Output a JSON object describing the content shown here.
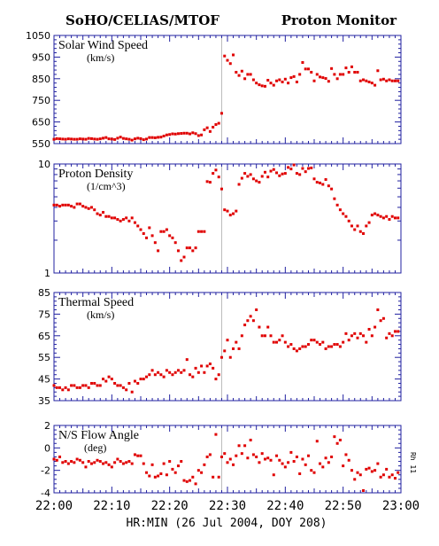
{
  "header": {
    "left": "SoHO/CELIAS/MTOF",
    "right": "Proton Monitor"
  },
  "xaxis": {
    "label": "HR:MIN (26 Jul 2004, DOY 208)",
    "ticks": [
      "22:00",
      "22:10",
      "22:20",
      "22:30",
      "22:40",
      "22:50",
      "23:00"
    ]
  },
  "side_note": "Rh 11",
  "colors": {
    "frame": "#2020a0",
    "points": "#e00000",
    "marker": "#bbbbbb"
  },
  "chart_data": [
    {
      "type": "scatter",
      "title": "Solar Wind Speed",
      "unit": "(km/s)",
      "ylim": [
        550,
        1050
      ],
      "yticks": [
        "1050",
        "950",
        "850",
        "750",
        "650",
        "550"
      ],
      "xlim": [
        0,
        60
      ],
      "x": [
        0.0,
        0.5,
        1.0,
        1.5,
        2.0,
        2.5,
        3.0,
        3.5,
        4.0,
        4.5,
        5.0,
        5.5,
        6.0,
        6.5,
        7.0,
        7.5,
        8.0,
        8.5,
        9.0,
        9.5,
        10.0,
        10.5,
        11.0,
        11.5,
        12.0,
        12.5,
        13.0,
        13.5,
        14.0,
        14.5,
        15.0,
        15.5,
        16.0,
        16.5,
        17.0,
        17.5,
        18.0,
        18.5,
        19.0,
        19.5,
        20.0,
        20.5,
        21.0,
        21.5,
        22.0,
        22.5,
        23.0,
        23.5,
        24.0,
        24.5,
        25.0,
        25.5,
        26.0,
        26.5,
        27.0,
        27.5,
        28.0,
        28.5,
        29.0,
        29.5,
        30.0,
        30.5,
        31.0,
        31.5,
        32.0,
        32.5,
        33.0,
        33.5,
        34.0,
        34.5,
        35.0,
        35.5,
        36.0,
        36.5,
        37.0,
        37.5,
        38.0,
        38.5,
        39.0,
        39.5,
        40.0,
        40.5,
        41.0,
        41.5,
        42.0,
        42.5,
        43.0,
        43.5,
        44.0,
        44.5,
        45.0,
        45.5,
        46.0,
        46.5,
        47.0,
        47.5,
        48.0,
        48.5,
        49.0,
        49.5,
        50.0,
        50.5,
        51.0,
        51.5,
        52.0,
        52.5,
        53.0,
        53.5,
        54.0,
        54.5,
        55.0,
        55.5,
        56.0,
        56.5,
        57.0,
        57.5,
        58.0,
        58.5,
        59.0,
        59.5
      ],
      "y": [
        570,
        573,
        572,
        571,
        570,
        572,
        571,
        570,
        570,
        572,
        571,
        570,
        574,
        573,
        571,
        570,
        572,
        575,
        578,
        572,
        571,
        569,
        575,
        580,
        574,
        572,
        570,
        566,
        572,
        575,
        573,
        568,
        571,
        578,
        578,
        577,
        579,
        580,
        585,
        590,
        592,
        595,
        594,
        596,
        597,
        598,
        598,
        595,
        600,
        596,
        587,
        590,
        614,
        623,
        606,
        626,
        638,
        644,
        690,
        955,
        935,
        920,
        960,
        880,
        865,
        885,
        850,
        870,
        870,
        845,
        830,
        822,
        817,
        815,
        843,
        830,
        820,
        840,
        845,
        835,
        848,
        830,
        855,
        860,
        835,
        870,
        925,
        895,
        895,
        880,
        840,
        870,
        858,
        855,
        851,
        838,
        897,
        870,
        850,
        870,
        870,
        900,
        880,
        905,
        880,
        880,
        840,
        845,
        840,
        835,
        830,
        820,
        887,
        845,
        848,
        840,
        845,
        840,
        840,
        840
      ]
    },
    {
      "type": "scatter",
      "yscale": "log",
      "title": "Proton Density",
      "unit": "(1/cm^3)",
      "ylim": [
        1,
        10
      ],
      "yticks": [
        "10",
        "1"
      ],
      "xlim": [
        0,
        60
      ],
      "x": [
        0.0,
        0.5,
        1.0,
        1.5,
        2.0,
        2.5,
        3.0,
        3.5,
        4.0,
        4.5,
        5.0,
        5.5,
        6.0,
        6.5,
        7.0,
        7.5,
        8.0,
        8.5,
        9.0,
        9.5,
        10.0,
        10.5,
        11.0,
        11.5,
        12.0,
        12.5,
        13.0,
        13.5,
        14.0,
        14.5,
        15.0,
        15.5,
        16.0,
        16.5,
        17.0,
        17.5,
        18.0,
        18.5,
        19.0,
        19.5,
        20.0,
        20.5,
        21.0,
        21.5,
        22.0,
        22.5,
        23.0,
        23.5,
        24.0,
        24.5,
        25.0,
        25.5,
        26.0,
        26.5,
        27.0,
        27.5,
        28.0,
        28.5,
        29.0,
        29.5,
        30.0,
        30.5,
        31.0,
        31.5,
        32.0,
        32.5,
        33.0,
        33.5,
        34.0,
        34.5,
        35.0,
        35.5,
        36.0,
        36.5,
        37.0,
        37.5,
        38.0,
        38.5,
        39.0,
        39.5,
        40.0,
        40.5,
        41.0,
        41.5,
        42.0,
        42.5,
        43.0,
        43.5,
        44.0,
        44.5,
        45.0,
        45.5,
        46.0,
        46.5,
        47.0,
        47.5,
        48.0,
        48.5,
        49.0,
        49.5,
        50.0,
        50.5,
        51.0,
        51.5,
        52.0,
        52.5,
        53.0,
        53.5,
        54.0,
        54.5,
        55.0,
        55.5,
        56.0,
        56.5,
        57.0,
        57.5,
        58.0,
        58.5,
        59.0,
        59.5
      ],
      "y": [
        4.2,
        4.2,
        4.1,
        4.2,
        4.2,
        4.2,
        4.1,
        4.0,
        4.3,
        4.3,
        4.1,
        4.0,
        3.9,
        4.0,
        3.8,
        3.5,
        3.4,
        3.6,
        3.3,
        3.3,
        3.2,
        3.2,
        3.1,
        3.0,
        3.1,
        3.2,
        3.0,
        3.2,
        2.9,
        2.7,
        2.5,
        2.3,
        2.1,
        2.6,
        2.2,
        1.9,
        1.6,
        2.4,
        2.4,
        2.5,
        2.2,
        2.1,
        1.9,
        1.6,
        1.3,
        1.4,
        1.7,
        1.7,
        1.6,
        1.7,
        2.4,
        2.4,
        2.4,
        6.9,
        6.8,
        8.2,
        8.8,
        7.6,
        5.9,
        3.8,
        3.7,
        3.4,
        3.5,
        3.7,
        6.5,
        7.4,
        8.2,
        7.7,
        8.0,
        7.3,
        7.0,
        6.8,
        7.7,
        8.4,
        7.6,
        8.6,
        8.9,
        8.3,
        7.8,
        8.1,
        8.2,
        9.3,
        9.0,
        9.8,
        8.2,
        8.0,
        9.1,
        8.5,
        9.1,
        9.2,
        7.3,
        6.8,
        6.7,
        6.5,
        7.2,
        6.3,
        5.9,
        4.8,
        4.2,
        3.8,
        3.5,
        3.3,
        3.0,
        2.7,
        2.5,
        2.7,
        2.4,
        2.3,
        2.7,
        2.9,
        3.4,
        3.5,
        3.4,
        3.3,
        3.2,
        3.3,
        3.1,
        3.3,
        3.2,
        3.2
      ]
    },
    {
      "type": "scatter",
      "title": "Thermal Speed",
      "unit": "(km/s)",
      "ylim": [
        35,
        85
      ],
      "yticks": [
        "85",
        "75",
        "65",
        "55",
        "45",
        "35"
      ],
      "xlim": [
        0,
        60
      ],
      "x": [
        0.0,
        0.5,
        1.0,
        1.5,
        2.0,
        2.5,
        3.0,
        3.5,
        4.0,
        4.5,
        5.0,
        5.5,
        6.0,
        6.5,
        7.0,
        7.5,
        8.0,
        8.5,
        9.0,
        9.5,
        10.0,
        10.5,
        11.0,
        11.5,
        12.0,
        12.5,
        13.0,
        13.5,
        14.0,
        14.5,
        15.0,
        15.5,
        16.0,
        16.5,
        17.0,
        17.5,
        18.0,
        18.5,
        19.0,
        19.5,
        20.0,
        20.5,
        21.0,
        21.5,
        22.0,
        22.5,
        23.0,
        23.5,
        24.0,
        24.5,
        25.0,
        25.5,
        26.0,
        26.5,
        27.0,
        27.5,
        28.0,
        28.5,
        29.0,
        29.5,
        30.0,
        30.5,
        31.0,
        31.5,
        32.0,
        32.5,
        33.0,
        33.5,
        34.0,
        34.5,
        35.0,
        35.5,
        36.0,
        36.5,
        37.0,
        37.5,
        38.0,
        38.5,
        39.0,
        39.5,
        40.0,
        40.5,
        41.0,
        41.5,
        42.0,
        42.5,
        43.0,
        43.5,
        44.0,
        44.5,
        45.0,
        45.5,
        46.0,
        46.5,
        47.0,
        47.5,
        48.0,
        48.5,
        49.0,
        49.5,
        50.0,
        50.5,
        51.0,
        51.5,
        52.0,
        52.5,
        53.0,
        53.5,
        54.0,
        54.5,
        55.0,
        55.5,
        56.0,
        56.5,
        57.0,
        57.5,
        58.0,
        58.5,
        59.0,
        59.5
      ],
      "y": [
        42,
        41,
        41,
        40,
        41,
        40,
        42,
        42,
        41,
        41,
        42,
        42,
        41,
        43,
        43,
        42,
        42,
        45,
        44,
        46,
        45,
        43,
        42,
        42,
        41,
        40,
        43,
        39,
        44,
        43,
        45,
        45,
        46,
        47,
        49,
        47,
        48,
        47,
        46,
        49,
        48,
        47,
        48,
        49,
        48,
        49,
        54,
        47,
        46,
        50,
        48,
        51,
        48,
        51,
        52,
        50,
        45,
        47,
        55,
        58,
        63,
        55,
        59,
        62,
        59,
        65,
        70,
        72,
        74,
        72,
        77,
        69,
        65,
        65,
        69,
        65,
        62,
        62,
        63,
        65,
        62,
        60,
        61,
        59,
        58,
        59,
        60,
        60,
        61,
        63,
        63,
        62,
        61,
        62,
        59,
        60,
        60,
        61,
        61,
        60,
        62,
        66,
        63,
        65,
        66,
        64,
        66,
        65,
        62,
        68,
        65,
        69,
        77,
        72,
        73,
        64,
        66,
        65,
        67,
        67
      ]
    },
    {
      "type": "scatter",
      "title": "N/S Flow Angle",
      "unit": "(deg)",
      "ylim": [
        -4,
        2
      ],
      "yticks": [
        "2",
        "0",
        "-2",
        "-4"
      ],
      "xlim": [
        0,
        60
      ],
      "x": [
        0.0,
        0.5,
        1.0,
        1.5,
        2.0,
        2.5,
        3.0,
        3.5,
        4.0,
        4.5,
        5.0,
        5.5,
        6.0,
        6.5,
        7.0,
        7.5,
        8.0,
        8.5,
        9.0,
        9.5,
        10.0,
        10.5,
        11.0,
        11.5,
        12.0,
        12.5,
        13.0,
        13.5,
        14.0,
        14.5,
        15.0,
        15.5,
        16.0,
        16.5,
        17.0,
        17.5,
        18.0,
        18.5,
        19.0,
        19.5,
        20.0,
        20.5,
        21.0,
        21.5,
        22.0,
        22.5,
        23.0,
        23.5,
        24.0,
        24.5,
        25.0,
        25.5,
        26.0,
        26.5,
        27.0,
        27.5,
        28.0,
        28.5,
        29.0,
        29.5,
        30.0,
        30.5,
        31.0,
        31.5,
        32.0,
        32.5,
        33.0,
        33.5,
        34.0,
        34.5,
        35.0,
        35.5,
        36.0,
        36.5,
        37.0,
        37.5,
        38.0,
        38.5,
        39.0,
        39.5,
        40.0,
        40.5,
        41.0,
        41.5,
        42.0,
        42.5,
        43.0,
        43.5,
        44.0,
        44.5,
        45.0,
        45.5,
        46.0,
        46.5,
        47.0,
        47.5,
        48.0,
        48.5,
        49.0,
        49.5,
        50.0,
        50.5,
        51.0,
        51.5,
        52.0,
        52.5,
        53.0,
        53.5,
        54.0,
        54.5,
        55.0,
        55.5,
        56.0,
        56.5,
        57.0,
        57.5,
        58.0,
        58.5,
        59.0,
        59.5
      ],
      "y": [
        -1.0,
        -1.1,
        -0.8,
        -1.3,
        -1.2,
        -1.4,
        -1.2,
        -1.3,
        -1.0,
        -1.1,
        -1.3,
        -1.7,
        -1.2,
        -1.4,
        -1.3,
        -1.1,
        -1.2,
        -1.4,
        -1.3,
        -1.5,
        -1.7,
        -1.3,
        -1.0,
        -1.2,
        -1.4,
        -1.3,
        -1.2,
        -1.4,
        -0.6,
        -0.7,
        -0.7,
        -1.4,
        -2.2,
        -2.5,
        -1.5,
        -2.6,
        -2.5,
        -2.3,
        -1.4,
        -2.4,
        -1.2,
        -1.9,
        -2.2,
        -1.6,
        -1.2,
        -2.9,
        -3.0,
        -2.9,
        -2.6,
        -3.2,
        -2.0,
        -2.2,
        -1.5,
        -0.8,
        -0.6,
        -2.6,
        1.2,
        -2.6,
        -0.8,
        -0.5,
        -1.3,
        -1.0,
        -1.5,
        -0.7,
        0.2,
        -0.5,
        0.2,
        -0.9,
        0.7,
        -0.6,
        -0.8,
        -1.3,
        -0.5,
        -1.0,
        -0.9,
        -1.1,
        -2.4,
        -0.7,
        -1.1,
        -1.4,
        -1.7,
        -1.3,
        -0.4,
        -1.2,
        -0.8,
        -2.3,
        -1.0,
        -1.5,
        -0.7,
        -2.0,
        -2.2,
        0.6,
        -1.4,
        -1.7,
        -0.9,
        -1.3,
        -0.8,
        1.0,
        0.4,
        0.7,
        -1.6,
        -0.6,
        -1.1,
        -2.0,
        -2.8,
        -2.2,
        -2.4,
        -3.8,
        -1.9,
        -1.8,
        -2.1,
        -2.0,
        -1.4,
        -2.6,
        -2.4,
        -1.9,
        -2.6,
        -2.4,
        -2.7,
        -2.2
      ]
    }
  ]
}
